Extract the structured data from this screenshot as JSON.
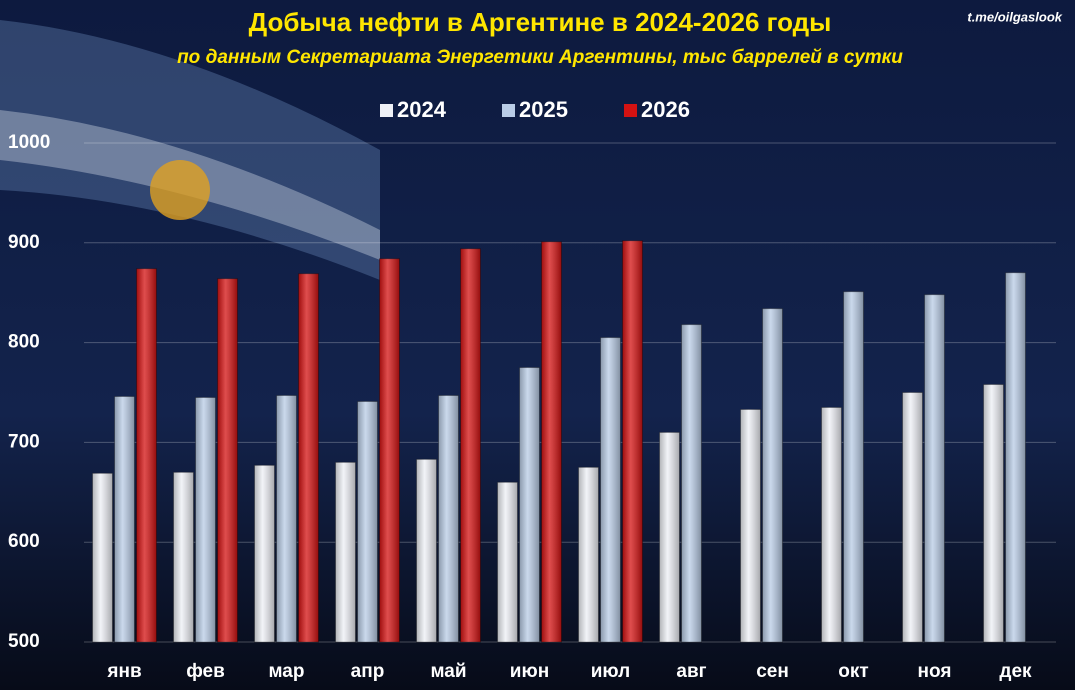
{
  "chart_data": {
    "type": "bar",
    "title": "Добыча нефти в Аргентине  в 2024-2026 годы",
    "subtitle": "по данным  Секретариата  Энергетики  Аргентины,  тыс  баррелей  в сутки",
    "source": "t.me/oilgaslook",
    "categories": [
      "янв",
      "фев",
      "мар",
      "апр",
      "май",
      "июн",
      "июл",
      "авг",
      "сен",
      "окт",
      "ноя",
      "дек"
    ],
    "series": [
      {
        "name": "2024",
        "color": "#eef0f6",
        "values": [
          669,
          670,
          677,
          680,
          683,
          660,
          675,
          710,
          733,
          735,
          750,
          758
        ]
      },
      {
        "name": "2025",
        "color": "#b9cce6",
        "values": [
          746,
          745,
          747,
          741,
          747,
          775,
          805,
          818,
          834,
          851,
          848,
          870
        ]
      },
      {
        "name": "2026",
        "color": "#d41212",
        "values": [
          874,
          864,
          869,
          884,
          894,
          901,
          902,
          null,
          null,
          null,
          null,
          null
        ]
      }
    ],
    "ylim": [
      500,
      1000
    ],
    "yticks": [
      500,
      600,
      700,
      800,
      900,
      1000
    ],
    "grid": true,
    "legend": "top"
  }
}
